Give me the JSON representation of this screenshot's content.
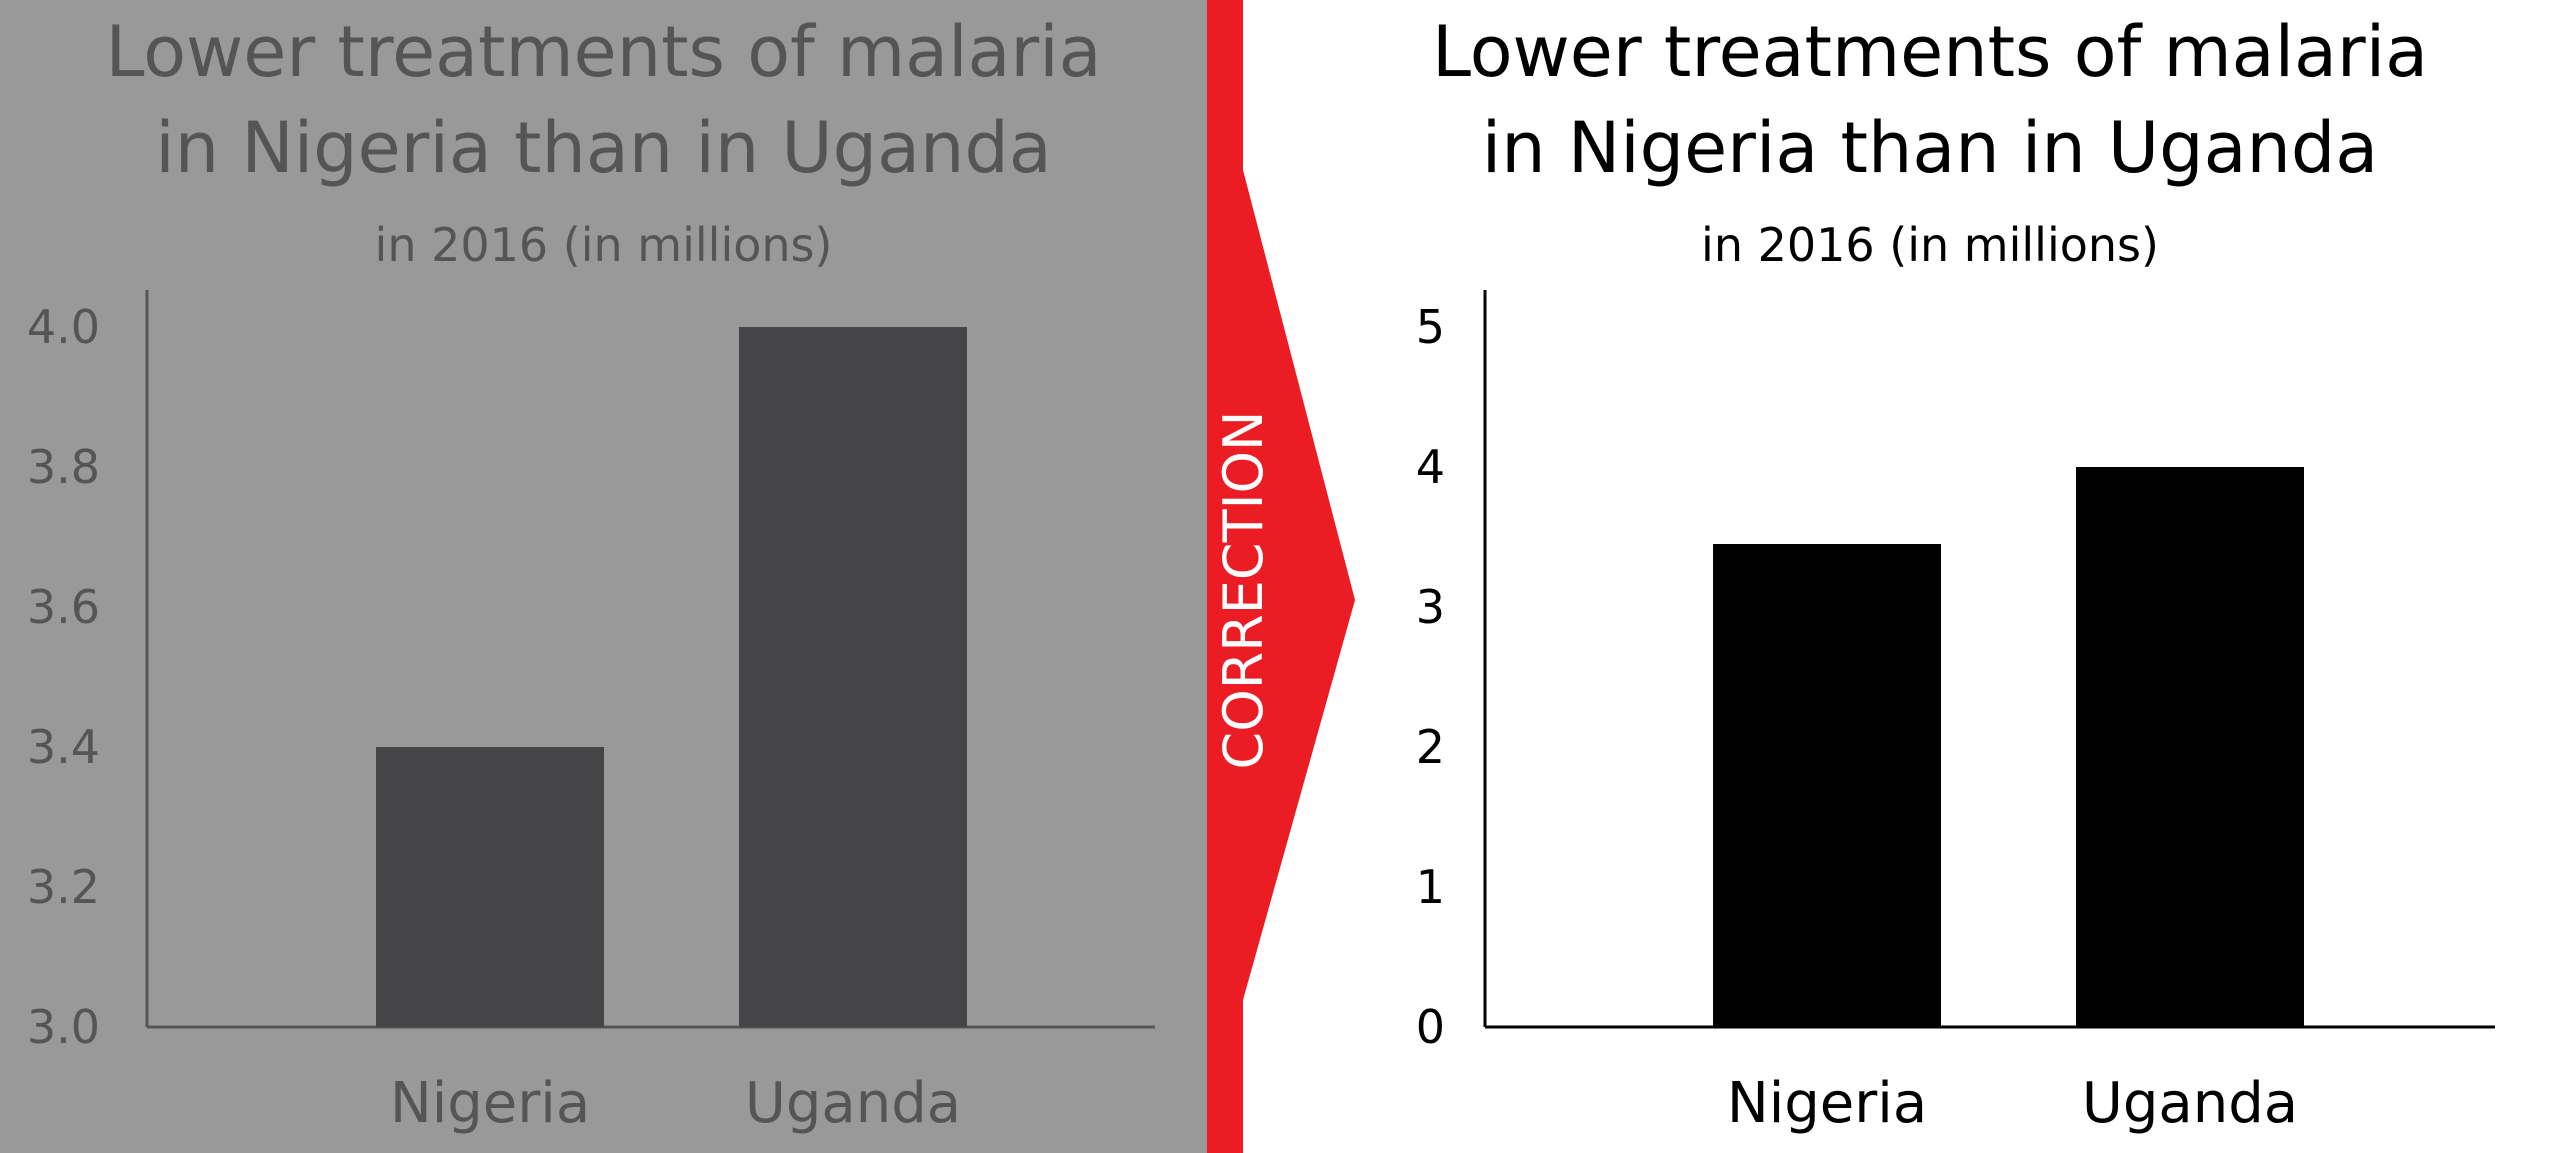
{
  "badge": {
    "label": "CORRECTION",
    "color": "#ec1c24"
  },
  "chart_data": [
    {
      "type": "bar",
      "title": "Lower treatments of malaria\nin Nigeria than in Uganda",
      "subtitle": "in 2016 (in millions)",
      "categories": [
        "Nigeria",
        "Uganda"
      ],
      "values": [
        3.4,
        4.0
      ],
      "ylim": [
        3.0,
        4.0
      ],
      "yticks": [
        "3.0",
        "3.2",
        "3.4",
        "3.6",
        "3.8",
        "4.0"
      ],
      "xlabel": "",
      "ylabel": "",
      "grid": false,
      "colors": {
        "background": "#999999",
        "bar": "#454547",
        "text": "#555557",
        "axis": "#555557"
      }
    },
    {
      "type": "bar",
      "title": "Lower treatments of malaria\nin Nigeria than in Uganda",
      "subtitle": "in 2016 (in millions)",
      "categories": [
        "Nigeria",
        "Uganda"
      ],
      "values": [
        3.45,
        4.0
      ],
      "ylim": [
        0,
        5
      ],
      "yticks": [
        "0",
        "1",
        "2",
        "3",
        "4",
        "5"
      ],
      "xlabel": "",
      "ylabel": "",
      "grid": false,
      "colors": {
        "background": "#ffffff",
        "bar": "#000000",
        "text": "#000000",
        "axis": "#000000"
      }
    }
  ]
}
